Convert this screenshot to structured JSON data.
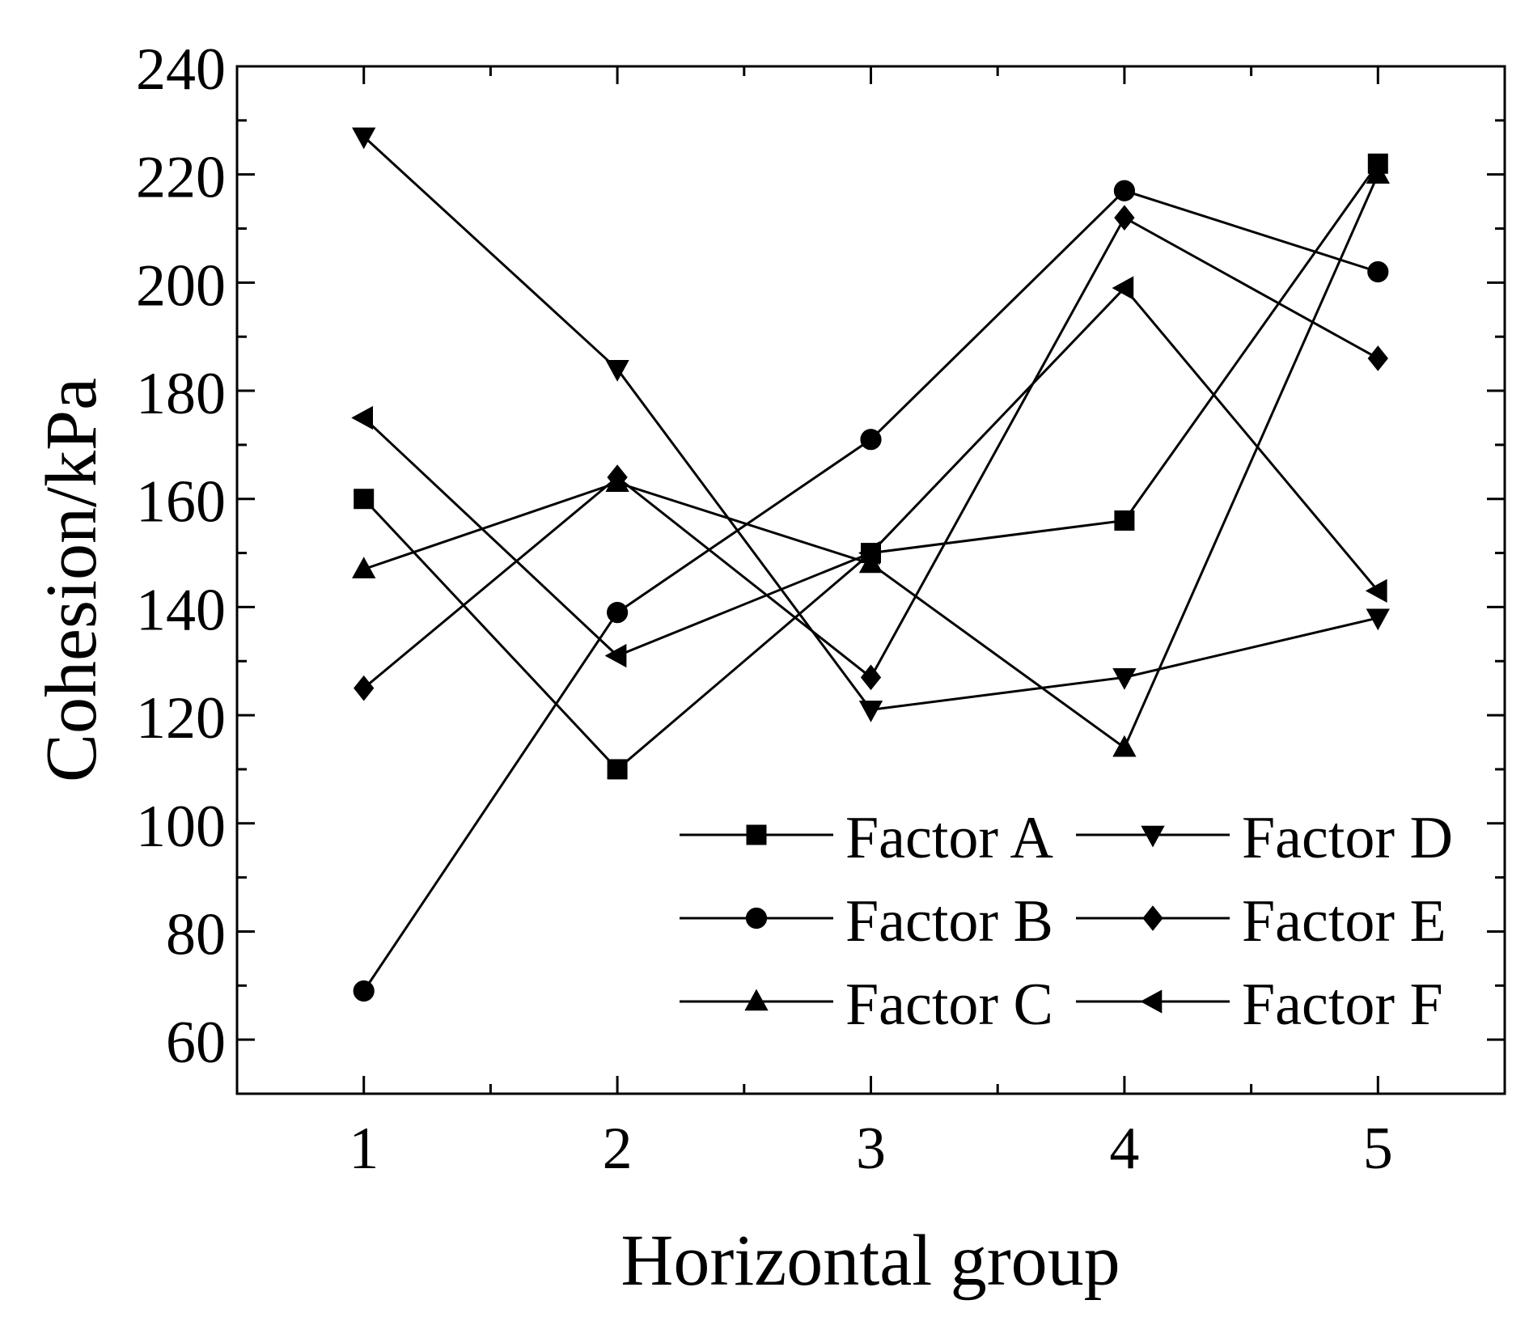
{
  "chart_data": {
    "type": "line",
    "title": "",
    "xlabel": "Horizontal group",
    "ylabel": "Cohesion/kPa",
    "categories": [
      "1",
      "2",
      "3",
      "4",
      "5"
    ],
    "x": [
      1,
      2,
      3,
      4,
      5
    ],
    "xlim": [
      0.5,
      5.5
    ],
    "ylim": [
      50,
      240
    ],
    "yticks": [
      60,
      80,
      100,
      120,
      140,
      160,
      180,
      200,
      220,
      240
    ],
    "grid": false,
    "legend_position": "bottom-right",
    "series": [
      {
        "name": "Factor A",
        "marker": "square",
        "values": [
          160,
          110,
          150,
          156,
          222
        ]
      },
      {
        "name": "Factor B",
        "marker": "circle",
        "values": [
          69,
          139,
          171,
          217,
          202
        ]
      },
      {
        "name": "Factor C",
        "marker": "triangle-up",
        "values": [
          147,
          163,
          148,
          114,
          220
        ]
      },
      {
        "name": "Factor D",
        "marker": "triangle-down",
        "values": [
          227,
          184,
          121,
          127,
          138
        ]
      },
      {
        "name": "Factor E",
        "marker": "diamond",
        "values": [
          125,
          164,
          127,
          212,
          186
        ]
      },
      {
        "name": "Factor F",
        "marker": "triangle-left",
        "values": [
          175,
          131,
          150,
          199,
          143
        ]
      }
    ],
    "line_color": "#000000"
  }
}
